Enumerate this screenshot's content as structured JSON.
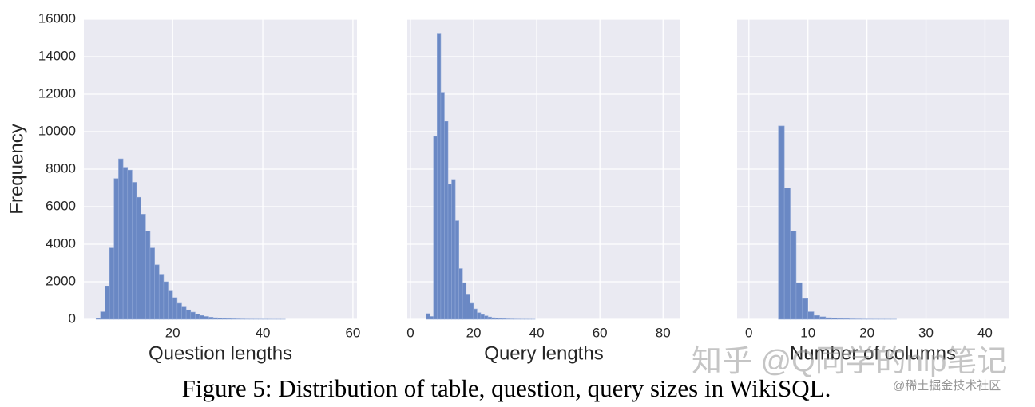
{
  "chart_data": [
    {
      "type": "histogram",
      "xlabel": "Question lengths",
      "ylabel": "Frequency",
      "color": "#6a88c4",
      "grid": true,
      "bins": [
        3,
        4,
        5,
        6,
        7,
        8,
        9,
        10,
        11,
        12,
        13,
        14,
        15,
        16,
        17,
        18,
        19,
        20,
        21,
        22,
        23,
        24,
        25,
        26,
        27,
        28,
        29,
        30,
        31,
        32,
        33,
        34,
        35,
        36,
        37,
        38,
        39,
        40,
        41,
        42,
        43,
        44,
        45
      ],
      "values": [
        50,
        400,
        1750,
        3800,
        7500,
        8550,
        8100,
        7950,
        7300,
        6500,
        5600,
        4700,
        3800,
        2900,
        2400,
        2000,
        1500,
        1150,
        850,
        650,
        500,
        380,
        280,
        200,
        150,
        110,
        80,
        60,
        45,
        35,
        25,
        20,
        15,
        10,
        8,
        6,
        5,
        4,
        3,
        2,
        2,
        1
      ],
      "xlim": [
        0.3,
        60.9
      ],
      "xticks": [
        20,
        40,
        60
      ],
      "ylim": [
        0,
        16000
      ],
      "yticks": [
        0,
        2000,
        4000,
        6000,
        8000,
        10000,
        12000,
        14000,
        16000
      ]
    },
    {
      "type": "histogram",
      "xlabel": "Query lengths",
      "color": "#6a88c4",
      "grid": true,
      "bins": [
        5,
        6.15,
        7.3,
        8.45,
        9.6,
        10.75,
        11.9,
        13.05,
        14.2,
        15.35,
        16.5,
        17.65,
        18.8,
        19.95,
        21.1,
        22.25,
        23.4,
        24.55,
        25.7,
        26.85,
        28,
        29.15,
        30.3,
        31.45,
        32.6,
        33.75,
        34.9,
        36.05,
        37.2,
        38.35,
        39.5
      ],
      "values": [
        300,
        150,
        9750,
        15250,
        12100,
        10550,
        7200,
        7450,
        5250,
        2700,
        1950,
        1300,
        850,
        550,
        350,
        250,
        180,
        120,
        80,
        60,
        40,
        30,
        20,
        15,
        10,
        8,
        5,
        4,
        3,
        2
      ],
      "xlim": [
        -1,
        85.5
      ],
      "xticks": [
        0,
        20,
        40,
        60,
        80
      ],
      "ylim": [
        0,
        16000
      ],
      "yticks": [
        0,
        2000,
        4000,
        6000,
        8000,
        10000,
        12000,
        14000,
        16000
      ]
    },
    {
      "type": "histogram",
      "xlabel": "Number of columns",
      "color": "#6a88c4",
      "grid": true,
      "bins": [
        5,
        6,
        7,
        8,
        9,
        10,
        11,
        12,
        13,
        14,
        15,
        16,
        17,
        18,
        19,
        20,
        21,
        22,
        23,
        24,
        25
      ],
      "values": [
        10300,
        7000,
        4700,
        1950,
        1100,
        400,
        200,
        130,
        80,
        60,
        40,
        30,
        20,
        15,
        10,
        8,
        6,
        5,
        4,
        3
      ],
      "xlim": [
        -2,
        44
      ],
      "xticks": [
        0,
        10,
        20,
        30,
        40
      ],
      "ylim": [
        0,
        16000
      ],
      "yticks": [
        0,
        2000,
        4000,
        6000,
        8000,
        10000,
        12000,
        14000,
        16000
      ]
    }
  ],
  "caption": "Figure 5:  Distribution of table, question, query sizes in WikiSQL.",
  "watermarks": [
    "知乎 @Q同学的nlp笔记",
    "@稀土掘金技术社区"
  ]
}
